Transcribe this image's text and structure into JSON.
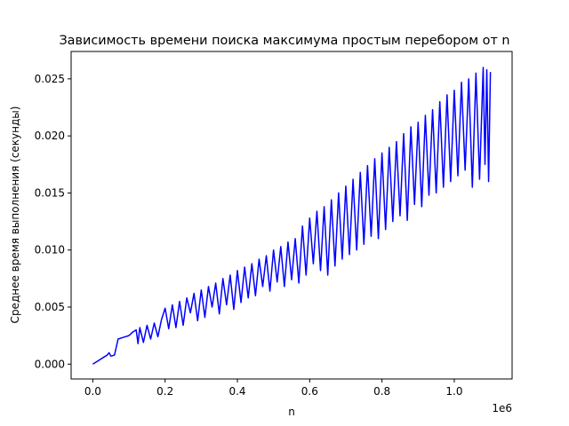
{
  "chart_data": {
    "type": "line",
    "title": "Зависимость времени поиска максимума простым перебором от n",
    "xlabel": "n",
    "ylabel": "Среднее время выполнения (секунды)",
    "x_offset_label": "1e6",
    "xlim": [
      -60000,
      1160000
    ],
    "ylim": [
      -0.0013,
      0.0274
    ],
    "x_ticks": [
      0,
      200000,
      400000,
      600000,
      800000,
      1000000
    ],
    "x_tick_labels": [
      "0.0",
      "0.2",
      "0.4",
      "0.6",
      "0.8",
      "1.0"
    ],
    "y_ticks": [
      0,
      0.005,
      0.01,
      0.015,
      0.02,
      0.025
    ],
    "y_tick_labels": [
      "0.000",
      "0.005",
      "0.010",
      "0.015",
      "0.020",
      "0.025"
    ],
    "grid": false,
    "series": [
      {
        "color": "#0000ff",
        "x": [
          0,
          10000,
          20000,
          30000,
          40000,
          45000,
          50000,
          60000,
          70000,
          80000,
          90000,
          100000,
          110000,
          115000,
          120000,
          125000,
          130000,
          140000,
          150000,
          160000,
          170000,
          180000,
          190000,
          200000,
          210000,
          220000,
          230000,
          240000,
          250000,
          260000,
          270000,
          280000,
          290000,
          300000,
          310000,
          320000,
          330000,
          340000,
          350000,
          360000,
          370000,
          380000,
          390000,
          400000,
          410000,
          420000,
          430000,
          440000,
          450000,
          460000,
          470000,
          480000,
          490000,
          500000,
          510000,
          520000,
          530000,
          540000,
          550000,
          560000,
          570000,
          580000,
          590000,
          600000,
          610000,
          620000,
          630000,
          640000,
          650000,
          660000,
          670000,
          680000,
          690000,
          700000,
          710000,
          720000,
          730000,
          740000,
          750000,
          760000,
          770000,
          780000,
          790000,
          800000,
          810000,
          820000,
          830000,
          840000,
          850000,
          860000,
          870000,
          880000,
          890000,
          900000,
          910000,
          920000,
          930000,
          940000,
          950000,
          960000,
          970000,
          980000,
          990000,
          1000000,
          1010000,
          1020000,
          1030000,
          1040000,
          1050000,
          1060000,
          1070000,
          1080000,
          1085000,
          1090000,
          1095000,
          1100000
        ],
        "y": [
          0,
          0.0002,
          0.0004,
          0.0006,
          0.0008,
          0.001,
          0.0007,
          0.0008,
          0.0022,
          0.0023,
          0.0024,
          0.0025,
          0.0028,
          0.0029,
          0.003,
          0.0018,
          0.0032,
          0.0019,
          0.0034,
          0.0022,
          0.0036,
          0.0024,
          0.0039,
          0.0049,
          0.0031,
          0.0052,
          0.0032,
          0.0055,
          0.0034,
          0.0058,
          0.0045,
          0.0062,
          0.0038,
          0.0065,
          0.0041,
          0.0068,
          0.005,
          0.0071,
          0.0044,
          0.0075,
          0.0052,
          0.0078,
          0.0048,
          0.0082,
          0.0054,
          0.0085,
          0.0058,
          0.0088,
          0.006,
          0.0092,
          0.0068,
          0.0095,
          0.0064,
          0.01,
          0.0072,
          0.0103,
          0.0068,
          0.0107,
          0.0074,
          0.011,
          0.0071,
          0.0121,
          0.0078,
          0.0128,
          0.0088,
          0.0134,
          0.0082,
          0.0138,
          0.0078,
          0.0144,
          0.0086,
          0.015,
          0.0092,
          0.0156,
          0.0096,
          0.0162,
          0.01,
          0.0168,
          0.0105,
          0.0174,
          0.0112,
          0.018,
          0.011,
          0.0185,
          0.0118,
          0.019,
          0.0125,
          0.0195,
          0.013,
          0.0202,
          0.0126,
          0.0208,
          0.014,
          0.0212,
          0.0138,
          0.0218,
          0.0148,
          0.0223,
          0.015,
          0.023,
          0.0155,
          0.0236,
          0.016,
          0.024,
          0.0165,
          0.0247,
          0.017,
          0.025,
          0.0155,
          0.0255,
          0.0162,
          0.026,
          0.0175,
          0.0258,
          0.016,
          0.0256
        ]
      }
    ]
  }
}
